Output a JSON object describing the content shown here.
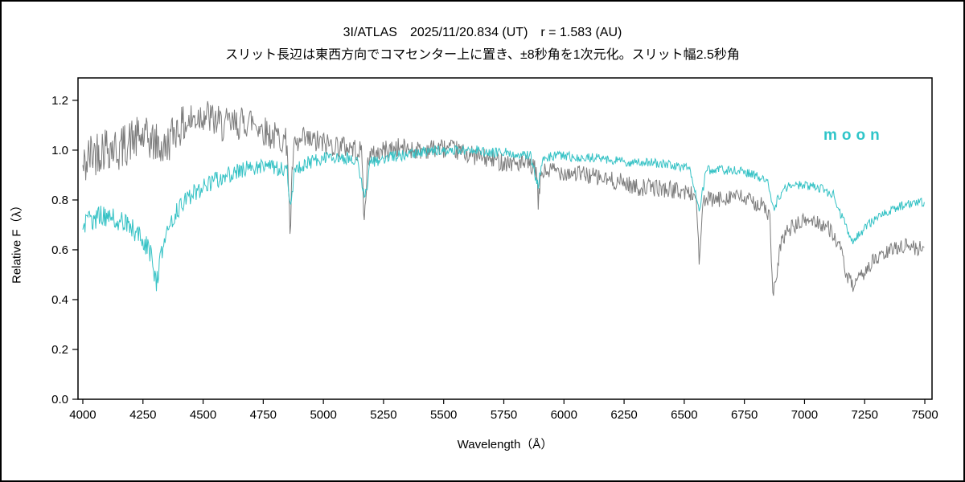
{
  "figure": {
    "title": "3I/ATLAS　2025/11/20.834 (UT)　r = 1.583 (AU)",
    "subtitle": "スリット長辺は東西方向でコマセンター上に置き、±8秒角を1次元化。スリット幅2.5秒角",
    "xlabel": "Wavelength（Å）",
    "ylabel": "Relative F（λ）",
    "moon_label": "moon"
  },
  "chart_data": {
    "type": "line",
    "title": "3I/ATLAS 2025/11/20.834 (UT) r = 1.583 (AU)",
    "subtitle": "スリット長辺は東西方向でコマセンター上に置き、±8秒角を1次元化。スリット幅2.5秒角",
    "xlabel": "Wavelength (Å)",
    "ylabel": "Relative F (λ)",
    "xlim": [
      3980,
      7530
    ],
    "ylim": [
      0,
      1.29
    ],
    "x_ticks": [
      4000,
      4250,
      4500,
      4750,
      5000,
      5250,
      5500,
      5750,
      6000,
      6250,
      6500,
      6750,
      7000,
      7250,
      7500
    ],
    "y_ticks": [
      "0.0",
      "0.2",
      "0.4",
      "0.6",
      "0.8",
      "1.0",
      "1.2"
    ],
    "grid": false,
    "legend_position": "top-right",
    "series": [
      {
        "name": "3I/ATLAS",
        "color": "#7d7d7d",
        "noise_amplitude": [
          [
            4000,
            0.1
          ],
          [
            4600,
            0.07
          ],
          [
            5200,
            0.04
          ],
          [
            6500,
            0.035
          ],
          [
            7500,
            0.03
          ]
        ],
        "anchors": [
          [
            4000,
            0.92
          ],
          [
            4030,
            0.98
          ],
          [
            4060,
            1.0
          ],
          [
            4100,
            1.02
          ],
          [
            4150,
            1.0
          ],
          [
            4200,
            1.04
          ],
          [
            4250,
            1.05
          ],
          [
            4300,
            1.03
          ],
          [
            4340,
            1.0
          ],
          [
            4380,
            1.08
          ],
          [
            4420,
            1.1
          ],
          [
            4470,
            1.13
          ],
          [
            4500,
            1.15
          ],
          [
            4540,
            1.12
          ],
          [
            4580,
            1.1
          ],
          [
            4620,
            1.1
          ],
          [
            4660,
            1.11
          ],
          [
            4700,
            1.12
          ],
          [
            4740,
            1.09
          ],
          [
            4780,
            1.06
          ],
          [
            4820,
            1.05
          ],
          [
            4850,
            1.03
          ],
          [
            4861,
            0.66
          ],
          [
            4875,
            1.0
          ],
          [
            4920,
            1.04
          ],
          [
            4980,
            1.03
          ],
          [
            5050,
            1.02
          ],
          [
            5120,
            1.01
          ],
          [
            5160,
            0.99
          ],
          [
            5170,
            0.7
          ],
          [
            5185,
            0.97
          ],
          [
            5250,
            1.0
          ],
          [
            5320,
            1.01
          ],
          [
            5400,
            1.0
          ],
          [
            5480,
            1.01
          ],
          [
            5550,
            1.0
          ],
          [
            5620,
            0.98
          ],
          [
            5700,
            0.96
          ],
          [
            5780,
            0.95
          ],
          [
            5850,
            0.94
          ],
          [
            5885,
            0.92
          ],
          [
            5893,
            0.78
          ],
          [
            5905,
            0.91
          ],
          [
            5960,
            0.92
          ],
          [
            6020,
            0.91
          ],
          [
            6100,
            0.9
          ],
          [
            6180,
            0.88
          ],
          [
            6250,
            0.87
          ],
          [
            6300,
            0.85
          ],
          [
            6380,
            0.85
          ],
          [
            6450,
            0.84
          ],
          [
            6520,
            0.83
          ],
          [
            6550,
            0.81
          ],
          [
            6563,
            0.55
          ],
          [
            6580,
            0.8
          ],
          [
            6640,
            0.8
          ],
          [
            6700,
            0.82
          ],
          [
            6760,
            0.8
          ],
          [
            6820,
            0.78
          ],
          [
            6855,
            0.74
          ],
          [
            6868,
            0.42
          ],
          [
            6885,
            0.48
          ],
          [
            6900,
            0.62
          ],
          [
            6930,
            0.68
          ],
          [
            6970,
            0.7
          ],
          [
            7010,
            0.72
          ],
          [
            7060,
            0.71
          ],
          [
            7110,
            0.68
          ],
          [
            7150,
            0.6
          ],
          [
            7180,
            0.48
          ],
          [
            7210,
            0.45
          ],
          [
            7240,
            0.5
          ],
          [
            7280,
            0.55
          ],
          [
            7330,
            0.58
          ],
          [
            7380,
            0.61
          ],
          [
            7430,
            0.62
          ],
          [
            7470,
            0.6
          ],
          [
            7500,
            0.62
          ]
        ]
      },
      {
        "name": "moon",
        "color": "#35c2c5",
        "noise_amplitude": [
          [
            4000,
            0.045
          ],
          [
            4800,
            0.03
          ],
          [
            5500,
            0.02
          ],
          [
            7500,
            0.018
          ]
        ],
        "anchors": [
          [
            4000,
            0.7
          ],
          [
            4040,
            0.72
          ],
          [
            4080,
            0.74
          ],
          [
            4120,
            0.73
          ],
          [
            4160,
            0.71
          ],
          [
            4200,
            0.69
          ],
          [
            4250,
            0.64
          ],
          [
            4285,
            0.58
          ],
          [
            4305,
            0.46
          ],
          [
            4330,
            0.6
          ],
          [
            4360,
            0.7
          ],
          [
            4400,
            0.77
          ],
          [
            4450,
            0.82
          ],
          [
            4500,
            0.85
          ],
          [
            4550,
            0.88
          ],
          [
            4600,
            0.9
          ],
          [
            4650,
            0.92
          ],
          [
            4700,
            0.93
          ],
          [
            4750,
            0.94
          ],
          [
            4800,
            0.93
          ],
          [
            4850,
            0.92
          ],
          [
            4862,
            0.76
          ],
          [
            4880,
            0.92
          ],
          [
            4940,
            0.95
          ],
          [
            5000,
            0.97
          ],
          [
            5080,
            0.97
          ],
          [
            5140,
            0.96
          ],
          [
            5172,
            0.8
          ],
          [
            5195,
            0.95
          ],
          [
            5260,
            0.97
          ],
          [
            5330,
            0.98
          ],
          [
            5400,
            0.99
          ],
          [
            5470,
            1.0
          ],
          [
            5550,
            1.0
          ],
          [
            5630,
            1.0
          ],
          [
            5700,
            0.99
          ],
          [
            5780,
            0.99
          ],
          [
            5860,
            0.98
          ],
          [
            5893,
            0.85
          ],
          [
            5910,
            0.97
          ],
          [
            5980,
            0.98
          ],
          [
            6050,
            0.97
          ],
          [
            6130,
            0.97
          ],
          [
            6200,
            0.96
          ],
          [
            6280,
            0.95
          ],
          [
            6360,
            0.95
          ],
          [
            6440,
            0.94
          ],
          [
            6520,
            0.93
          ],
          [
            6565,
            0.76
          ],
          [
            6590,
            0.92
          ],
          [
            6650,
            0.92
          ],
          [
            6720,
            0.92
          ],
          [
            6790,
            0.9
          ],
          [
            6850,
            0.87
          ],
          [
            6872,
            0.76
          ],
          [
            6895,
            0.82
          ],
          [
            6940,
            0.86
          ],
          [
            7000,
            0.86
          ],
          [
            7060,
            0.85
          ],
          [
            7120,
            0.82
          ],
          [
            7160,
            0.72
          ],
          [
            7200,
            0.63
          ],
          [
            7245,
            0.68
          ],
          [
            7300,
            0.73
          ],
          [
            7360,
            0.76
          ],
          [
            7420,
            0.78
          ],
          [
            7470,
            0.79
          ],
          [
            7500,
            0.79
          ]
        ]
      }
    ]
  }
}
